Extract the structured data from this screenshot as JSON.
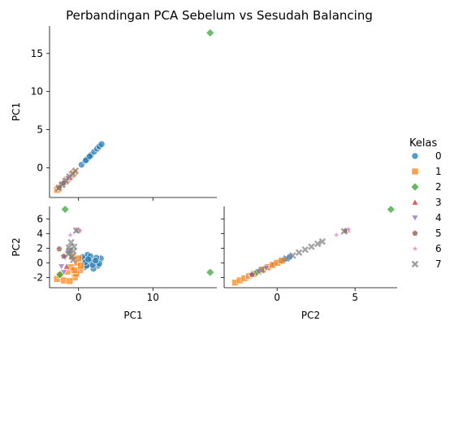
{
  "colors": {
    "0": "#1f77b4",
    "1": "#ff7f0e",
    "2": "#2ca02c",
    "3": "#d62728",
    "4": "#9467bd",
    "5": "#8c564b",
    "6": "#e377c2",
    "7": "#7f7f7f"
  },
  "chart_data": {
    "type": "scatter",
    "title": "Perbandingan PCA Sebelum vs Sesudah Balancing",
    "variables": [
      "PC1",
      "PC2"
    ],
    "layout": "corner pair plot (lower triangle)",
    "legend": {
      "title": "Kelas",
      "placement": "right",
      "entries": [
        {
          "label": "0",
          "marker": "circle"
        },
        {
          "label": "1",
          "marker": "square"
        },
        {
          "label": "2",
          "marker": "diamond"
        },
        {
          "label": "3",
          "marker": "triangle-up"
        },
        {
          "label": "4",
          "marker": "triangle-down"
        },
        {
          "label": "5",
          "marker": "pentagon"
        },
        {
          "label": "6",
          "marker": "star"
        },
        {
          "label": "7",
          "marker": "x"
        }
      ]
    },
    "axes": {
      "PC1": {
        "range": [
          -3.9,
          18.6
        ],
        "ticks": [
          0,
          10
        ],
        "ticks_y": [
          0,
          5,
          10,
          15
        ]
      },
      "PC2": {
        "range": [
          -3.4,
          7.7
        ],
        "ticks": [
          0,
          5
        ],
        "ticks_y": [
          -2,
          0,
          2,
          4,
          6
        ]
      }
    },
    "panels": [
      {
        "name": "PC1 vs PC1",
        "xvar": "PC1",
        "yvar": "PC1",
        "series": [
          {
            "class": "0",
            "points": [
              [
                0.4,
                0.4
              ],
              [
                0.9,
                0.9
              ],
              [
                1.3,
                1.3
              ],
              [
                1.7,
                1.7
              ],
              [
                2.1,
                2.1
              ],
              [
                2.5,
                2.5
              ],
              [
                2.8,
                2.8
              ],
              [
                3.1,
                3.1
              ],
              [
                1.0,
                1.0
              ],
              [
                1.5,
                1.5
              ]
            ]
          },
          {
            "class": "1",
            "points": [
              [
                -2.9,
                -2.9
              ],
              [
                -2.6,
                -2.6
              ],
              [
                -2.2,
                -2.2
              ],
              [
                -1.8,
                -1.8
              ],
              [
                -1.5,
                -1.5
              ],
              [
                -1.2,
                -1.2
              ],
              [
                -0.9,
                -0.9
              ],
              [
                -0.6,
                -0.6
              ]
            ]
          },
          {
            "class": "2",
            "points": [
              [
                17.7,
                17.7
              ]
            ]
          },
          {
            "class": "3",
            "points": [
              [
                -1.7,
                -1.7
              ],
              [
                -1.3,
                -1.3
              ]
            ]
          },
          {
            "class": "4",
            "points": [
              [
                -2.3,
                -2.3
              ],
              [
                -1.9,
                -1.9
              ],
              [
                -1.4,
                -1.4
              ]
            ]
          },
          {
            "class": "5",
            "points": [
              [
                -2.6,
                -2.6
              ],
              [
                -2.0,
                -2.0
              ]
            ]
          },
          {
            "class": "6",
            "points": [
              [
                -1.1,
                -1.1
              ],
              [
                -0.7,
                -0.7
              ]
            ]
          },
          {
            "class": "7",
            "points": [
              [
                -2.7,
                -2.7
              ],
              [
                -2.2,
                -2.2
              ],
              [
                -1.7,
                -1.7
              ],
              [
                -1.2,
                -1.2
              ],
              [
                -0.8,
                -0.8
              ],
              [
                -0.4,
                -0.4
              ]
            ]
          }
        ]
      },
      {
        "name": "PC1 vs PC2",
        "xvar": "PC1",
        "yvar": "PC2",
        "series": [
          {
            "class": "0",
            "points": [
              [
                0.6,
                0.2
              ],
              [
                1.0,
                0.7
              ],
              [
                1.4,
                -0.2
              ],
              [
                1.8,
                0.4
              ],
              [
                2.2,
                0.0
              ],
              [
                2.6,
                -0.4
              ],
              [
                3.0,
                0.6
              ],
              [
                1.2,
                1.1
              ],
              [
                0.8,
                -0.6
              ],
              [
                2.0,
                -0.8
              ],
              [
                1.6,
                0.9
              ],
              [
                0.5,
                0.8
              ],
              [
                2.8,
                -0.1
              ],
              [
                1.1,
                -0.4
              ],
              [
                2.4,
                0.7
              ],
              [
                1.5,
                0.3
              ],
              [
                0.9,
                0.1
              ],
              [
                1.9,
                -0.3
              ],
              [
                2.3,
                0.3
              ],
              [
                1.3,
                0.5
              ]
            ]
          },
          {
            "class": "1",
            "points": [
              [
                -2.9,
                -2.2
              ],
              [
                -2.5,
                -1.7
              ],
              [
                -2.0,
                -2.4
              ],
              [
                -1.5,
                -1.2
              ],
              [
                -1.0,
                -0.6
              ],
              [
                -0.5,
                -2.0
              ],
              [
                -0.2,
                0.0
              ],
              [
                0.2,
                -1.0
              ],
              [
                -0.8,
                0.8
              ],
              [
                0.0,
                0.6
              ],
              [
                -1.2,
                -2.5
              ],
              [
                -0.3,
                -1.5
              ],
              [
                0.3,
                -0.4
              ],
              [
                -0.6,
                -1.0
              ]
            ]
          },
          {
            "class": "2",
            "points": [
              [
                -1.8,
                7.3
              ],
              [
                17.7,
                -1.3
              ],
              [
                -2.5,
                -1.6
              ]
            ]
          },
          {
            "class": "3",
            "points": [
              [
                -0.2,
                4.5
              ],
              [
                -1.6,
                -0.5
              ]
            ]
          },
          {
            "class": "4",
            "points": [
              [
                -2.3,
                -0.5
              ],
              [
                -1.8,
                0.7
              ],
              [
                -1.3,
                1.4
              ],
              [
                -2.0,
                -1.3
              ]
            ]
          },
          {
            "class": "5",
            "points": [
              [
                -2.6,
                1.9
              ],
              [
                -2.0,
                0.9
              ],
              [
                0.0,
                4.4
              ]
            ]
          },
          {
            "class": "6",
            "points": [
              [
                -1.1,
                3.8
              ],
              [
                -0.3,
                4.6
              ],
              [
                0.2,
                4.4
              ]
            ]
          },
          {
            "class": "7",
            "points": [
              [
                -1.3,
                2.1
              ],
              [
                -1.0,
                2.8
              ],
              [
                -0.7,
                1.6
              ],
              [
                -1.4,
                1.2
              ],
              [
                -0.9,
                0.9
              ],
              [
                -0.6,
                2.2
              ],
              [
                -1.2,
                1.7
              ],
              [
                -0.3,
                4.4
              ],
              [
                -0.7,
                0.4
              ]
            ]
          }
        ]
      },
      {
        "name": "PC2 vs PC2",
        "xvar": "PC2",
        "yvar": "PC2",
        "series": [
          {
            "class": "0",
            "points": [
              [
                -1.4,
                -1.4
              ],
              [
                -1.0,
                -1.0
              ],
              [
                -0.6,
                -0.6
              ],
              [
                -0.2,
                -0.2
              ],
              [
                0.2,
                0.2
              ],
              [
                0.5,
                0.5
              ],
              [
                0.8,
                0.8
              ]
            ]
          },
          {
            "class": "1",
            "points": [
              [
                -2.7,
                -2.7
              ],
              [
                -2.4,
                -2.4
              ],
              [
                -2.1,
                -2.1
              ],
              [
                -1.8,
                -1.8
              ],
              [
                -1.5,
                -1.5
              ],
              [
                -1.2,
                -1.2
              ],
              [
                -0.9,
                -0.9
              ],
              [
                -0.6,
                -0.6
              ],
              [
                -0.3,
                -0.3
              ],
              [
                0.0,
                0.0
              ],
              [
                0.3,
                0.3
              ]
            ]
          },
          {
            "class": "2",
            "points": [
              [
                7.3,
                7.3
              ],
              [
                -1.3,
                -1.3
              ]
            ]
          },
          {
            "class": "3",
            "points": [
              [
                4.5,
                4.5
              ]
            ]
          },
          {
            "class": "4",
            "points": [
              [
                -1.7,
                -1.7
              ],
              [
                -1.2,
                -1.2
              ],
              [
                -0.7,
                -0.7
              ]
            ]
          },
          {
            "class": "5",
            "points": [
              [
                4.4,
                4.4
              ],
              [
                -1.6,
                -1.6
              ]
            ]
          },
          {
            "class": "6",
            "points": [
              [
                3.8,
                3.8
              ],
              [
                4.6,
                4.6
              ]
            ]
          },
          {
            "class": "7",
            "points": [
              [
                0.6,
                0.6
              ],
              [
                1.0,
                1.0
              ],
              [
                1.4,
                1.4
              ],
              [
                1.8,
                1.8
              ],
              [
                2.2,
                2.2
              ],
              [
                2.6,
                2.6
              ],
              [
                2.9,
                2.9
              ],
              [
                4.3,
                4.3
              ],
              [
                -1.0,
                -1.0
              ]
            ]
          }
        ]
      }
    ]
  }
}
